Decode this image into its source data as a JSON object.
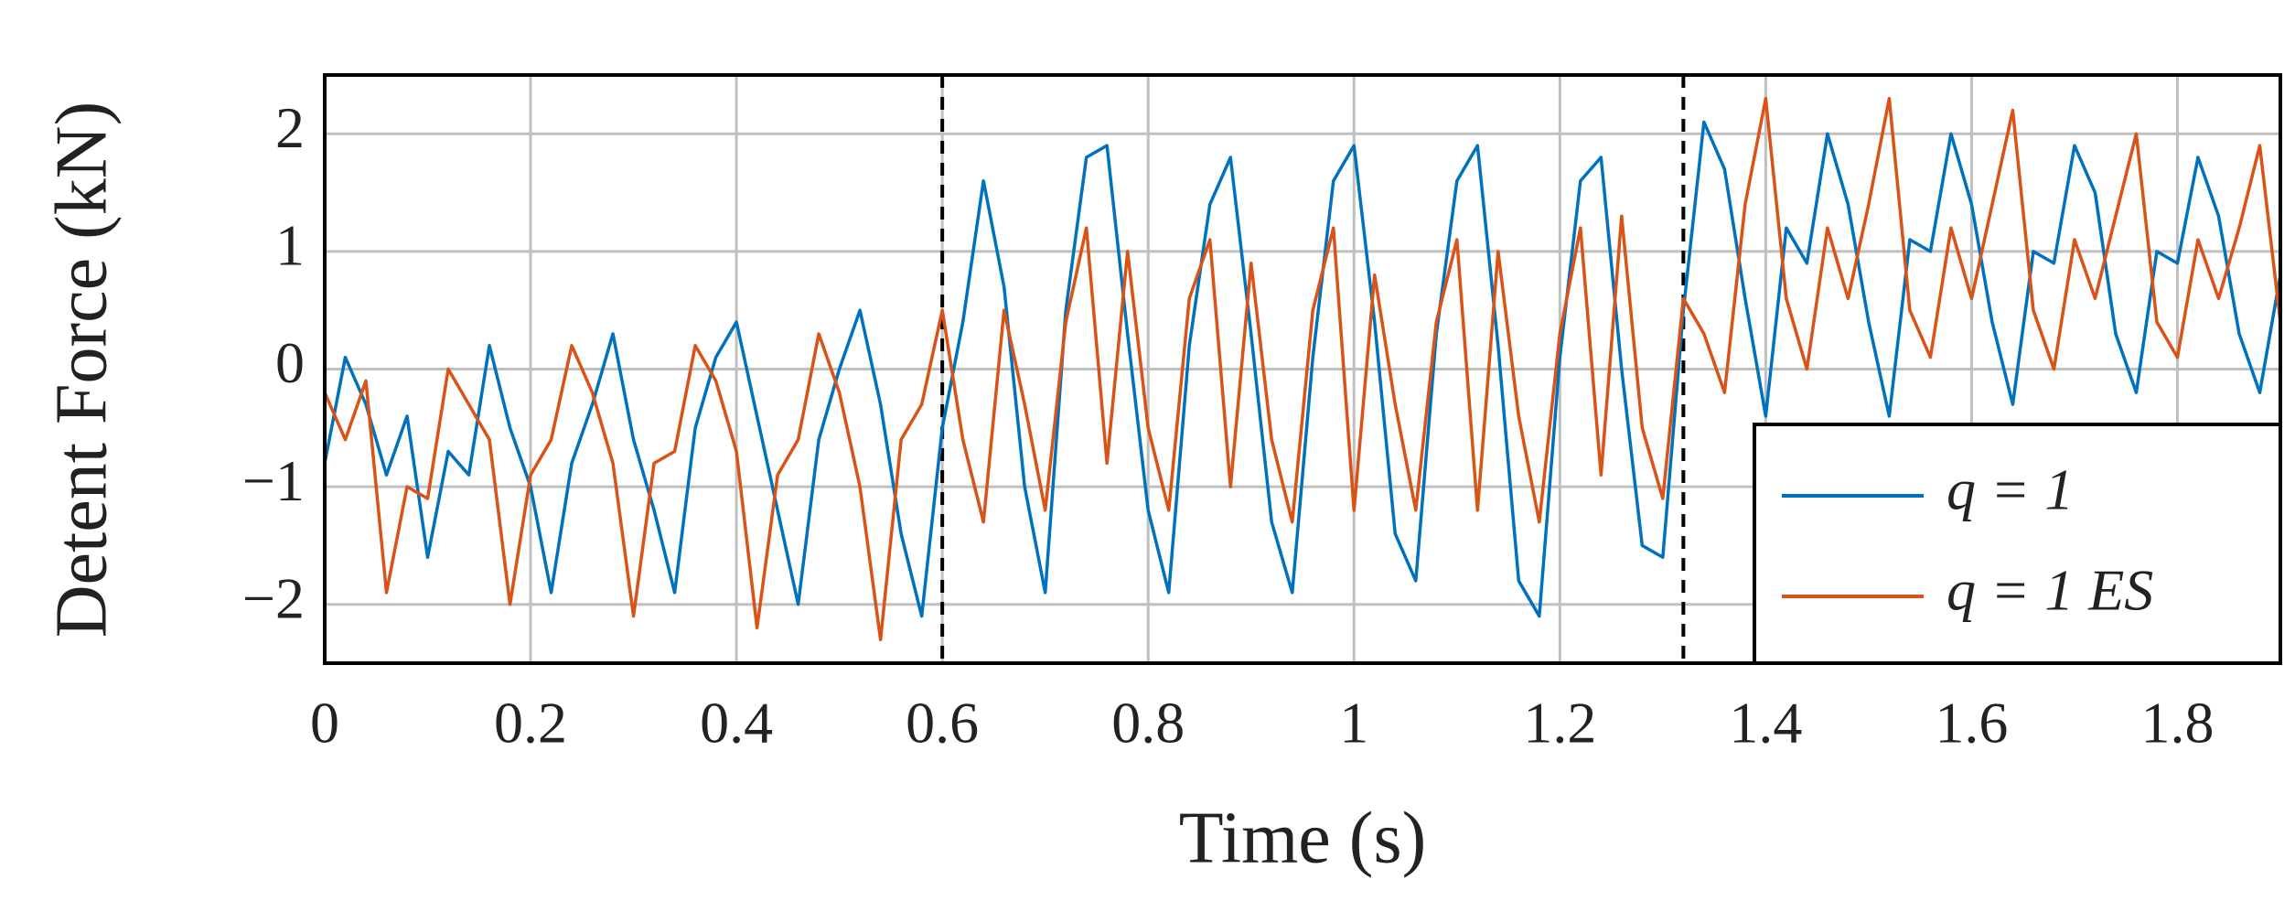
{
  "chart_data": {
    "type": "line",
    "x_label": "Time (s)",
    "y_label": "Detent Force (kN)",
    "x": [
      0,
      0.02,
      0.04,
      0.06,
      0.08,
      0.1,
      0.12,
      0.14,
      0.16,
      0.18,
      0.2,
      0.22,
      0.24,
      0.26,
      0.28,
      0.3,
      0.32,
      0.34,
      0.36,
      0.38,
      0.4,
      0.42,
      0.44,
      0.46,
      0.48,
      0.5,
      0.52,
      0.54,
      0.56,
      0.58,
      0.6,
      0.62,
      0.64,
      0.66,
      0.68,
      0.7,
      0.72,
      0.74,
      0.76,
      0.78,
      0.8,
      0.82,
      0.84,
      0.86,
      0.88,
      0.9,
      0.92,
      0.94,
      0.96,
      0.98,
      1,
      1.02,
      1.04,
      1.06,
      1.08,
      1.1,
      1.12,
      1.14,
      1.16,
      1.18,
      1.2,
      1.22,
      1.24,
      1.26,
      1.28,
      1.3,
      1.32,
      1.34,
      1.36,
      1.38,
      1.4,
      1.42,
      1.44,
      1.46,
      1.48,
      1.5,
      1.52,
      1.54,
      1.56,
      1.58,
      1.6,
      1.62,
      1.64,
      1.66,
      1.68,
      1.7,
      1.72,
      1.74,
      1.76,
      1.78,
      1.8,
      1.82,
      1.84,
      1.86,
      1.88,
      1.9
    ],
    "series": [
      {
        "name": "q = 1",
        "color": "#0072bd",
        "values": [
          -0.8,
          0.1,
          -0.3,
          -0.9,
          -0.4,
          -1.6,
          -0.7,
          -0.9,
          0.2,
          -0.5,
          -1.0,
          -1.9,
          -0.8,
          -0.3,
          0.3,
          -0.6,
          -1.2,
          -1.9,
          -0.5,
          0.1,
          0.4,
          -0.4,
          -1.2,
          -2.0,
          -0.6,
          0.0,
          0.5,
          -0.3,
          -1.4,
          -2.1,
          -0.5,
          0.4,
          1.6,
          0.7,
          -1.0,
          -1.9,
          0.5,
          1.8,
          1.9,
          0.3,
          -1.2,
          -1.9,
          0.2,
          1.4,
          1.8,
          0.3,
          -1.3,
          -1.9,
          0.1,
          1.6,
          1.9,
          0.4,
          -1.4,
          -1.8,
          0.3,
          1.6,
          1.9,
          0.2,
          -1.8,
          -2.1,
          0.1,
          1.6,
          1.8,
          0.0,
          -1.5,
          -1.6,
          0.5,
          2.1,
          1.7,
          0.6,
          -0.4,
          1.2,
          0.9,
          2.0,
          1.4,
          0.4,
          -0.4,
          1.1,
          1.0,
          2.0,
          1.4,
          0.4,
          -0.3,
          1.0,
          0.9,
          1.9,
          1.5,
          0.3,
          -0.2,
          1.0,
          0.9,
          1.8,
          1.3,
          0.3,
          -0.2,
          0.8
        ]
      },
      {
        "name": "q = 1 ES",
        "color": "#d95319",
        "values": [
          -0.2,
          -0.6,
          -0.1,
          -1.9,
          -1.0,
          -1.1,
          0.0,
          -0.3,
          -0.6,
          -2.0,
          -0.9,
          -0.6,
          0.2,
          -0.2,
          -0.8,
          -2.1,
          -0.8,
          -0.7,
          0.2,
          -0.1,
          -0.7,
          -2.2,
          -0.9,
          -0.6,
          0.3,
          -0.2,
          -1.0,
          -2.3,
          -0.6,
          -0.3,
          0.5,
          -0.6,
          -1.3,
          0.5,
          -0.3,
          -1.2,
          0.4,
          1.2,
          -0.8,
          1.0,
          -0.5,
          -1.2,
          0.6,
          1.1,
          -1.0,
          0.9,
          -0.6,
          -1.3,
          0.5,
          1.2,
          -1.2,
          0.8,
          -0.3,
          -1.2,
          0.4,
          1.1,
          -1.2,
          1.0,
          -0.4,
          -1.3,
          0.3,
          1.2,
          -0.9,
          1.3,
          -0.5,
          -1.1,
          0.6,
          0.3,
          -0.2,
          1.4,
          2.3,
          0.6,
          0.0,
          1.2,
          0.6,
          1.4,
          2.3,
          0.5,
          0.1,
          1.2,
          0.6,
          1.4,
          2.2,
          0.5,
          0.0,
          1.1,
          0.6,
          1.3,
          2.0,
          0.4,
          0.1,
          1.1,
          0.6,
          1.2,
          1.9,
          0.4
        ]
      }
    ],
    "vlines": [
      0.6,
      1.32
    ],
    "xlim": [
      0,
      1.9
    ],
    "ylim": [
      -2.5,
      2.5
    ],
    "xticks": [
      0,
      0.2,
      0.4,
      0.6,
      0.8,
      1,
      1.2,
      1.4,
      1.6,
      1.8
    ],
    "yticks": [
      {
        "value": -2,
        "label": "−2"
      },
      {
        "value": -1,
        "label": "−1"
      },
      0,
      1,
      2
    ],
    "grid": true,
    "legend": "lower right"
  }
}
